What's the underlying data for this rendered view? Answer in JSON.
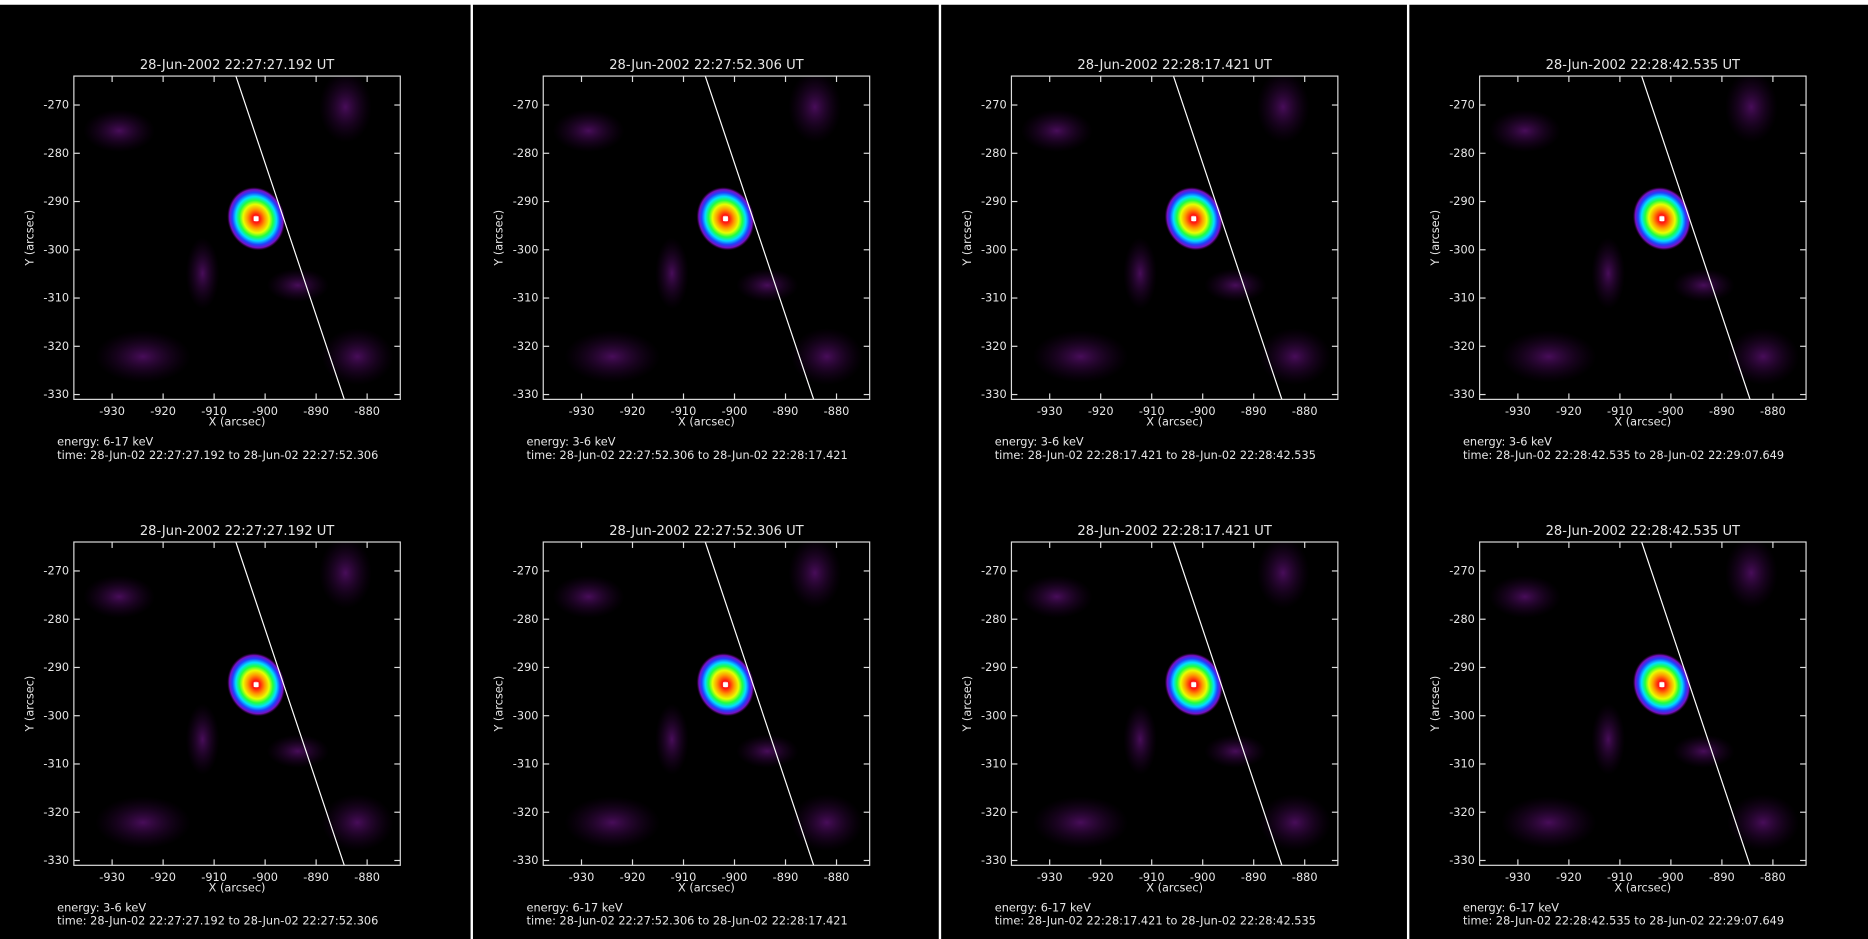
{
  "chart_data": [
    {
      "type": "image",
      "title": "28-Jun-2002 22:27:27.192 UT",
      "xlabel": "X (arcsec)",
      "ylabel": "Y (arcsec)",
      "xlim": [
        -937.5,
        -873.5
      ],
      "ylim": [
        -331,
        -264
      ],
      "xticks": [
        -930,
        -920,
        -910,
        -900,
        -890,
        -880
      ],
      "yticks": [
        -270,
        -280,
        -290,
        -300,
        -310,
        -320,
        -330
      ],
      "energy": "energy: 6-17 keV",
      "time": "time: 28-Jun-02 22:27:27.192 to 28-Jun-02 22:27:52.306"
    },
    {
      "type": "image",
      "title": "28-Jun-2002 22:27:52.306 UT",
      "xlabel": "X (arcsec)",
      "ylabel": "Y (arcsec)",
      "xlim": [
        -937.5,
        -873.5
      ],
      "ylim": [
        -331,
        -264
      ],
      "xticks": [
        -930,
        -920,
        -910,
        -900,
        -890,
        -880
      ],
      "yticks": [
        -270,
        -280,
        -290,
        -300,
        -310,
        -320,
        -330
      ],
      "energy": "energy: 3-6 keV",
      "time": "time: 28-Jun-02 22:27:52.306 to 28-Jun-02 22:28:17.421"
    },
    {
      "type": "image",
      "title": "28-Jun-2002 22:28:17.421 UT",
      "xlabel": "X (arcsec)",
      "ylabel": "Y (arcsec)",
      "xlim": [
        -937.5,
        -873.5
      ],
      "ylim": [
        -331,
        -264
      ],
      "xticks": [
        -930,
        -920,
        -910,
        -900,
        -890,
        -880
      ],
      "yticks": [
        -270,
        -280,
        -290,
        -300,
        -310,
        -320,
        -330
      ],
      "energy": "energy: 3-6 keV",
      "time": "time: 28-Jun-02 22:28:17.421 to 28-Jun-02 22:28:42.535"
    },
    {
      "type": "image",
      "title": "28-Jun-2002 22:28:42.535 UT",
      "xlabel": "X (arcsec)",
      "ylabel": "Y (arcsec)",
      "xlim": [
        -937.5,
        -873.5
      ],
      "ylim": [
        -331,
        -264
      ],
      "xticks": [
        -930,
        -920,
        -910,
        -900,
        -890,
        -880
      ],
      "yticks": [
        -270,
        -280,
        -290,
        -300,
        -310,
        -320,
        -330
      ],
      "energy": "energy: 3-6 keV",
      "time": "time: 28-Jun-02 22:28:42.535 to 28-Jun-02 22:29:07.649"
    },
    {
      "type": "image",
      "title": "28-Jun-2002 22:27:27.192 UT",
      "xlabel": "X (arcsec)",
      "ylabel": "Y (arcsec)",
      "xlim": [
        -937.5,
        -873.5
      ],
      "ylim": [
        -331,
        -264
      ],
      "xticks": [
        -930,
        -920,
        -910,
        -900,
        -890,
        -880
      ],
      "yticks": [
        -270,
        -280,
        -290,
        -300,
        -310,
        -320,
        -330
      ],
      "energy": "energy: 3-6 keV",
      "time": "time: 28-Jun-02 22:27:27.192 to 28-Jun-02 22:27:52.306"
    },
    {
      "type": "image",
      "title": "28-Jun-2002 22:27:52.306 UT",
      "xlabel": "X (arcsec)",
      "ylabel": "Y (arcsec)",
      "xlim": [
        -937.5,
        -873.5
      ],
      "ylim": [
        -331,
        -264
      ],
      "xticks": [
        -930,
        -920,
        -910,
        -900,
        -890,
        -880
      ],
      "yticks": [
        -270,
        -280,
        -290,
        -300,
        -310,
        -320,
        -330
      ],
      "energy": "energy: 6-17 keV",
      "time": "time: 28-Jun-02 22:27:52.306 to 28-Jun-02 22:28:17.421"
    },
    {
      "type": "image",
      "title": "28-Jun-2002 22:28:17.421 UT",
      "xlabel": "X (arcsec)",
      "ylabel": "Y (arcsec)",
      "xlim": [
        -937.5,
        -873.5
      ],
      "ylim": [
        -331,
        -264
      ],
      "xticks": [
        -930,
        -920,
        -910,
        -900,
        -890,
        -880
      ],
      "yticks": [
        -270,
        -280,
        -290,
        -300,
        -310,
        -320,
        -330
      ],
      "energy": "energy: 6-17 keV",
      "time": "time: 28-Jun-02 22:28:17.421 to 28-Jun-02 22:28:42.535"
    },
    {
      "type": "image",
      "title": "28-Jun-2002 22:28:42.535 UT",
      "xlabel": "X (arcsec)",
      "ylabel": "Y (arcsec)",
      "xlim": [
        -937.5,
        -873.5
      ],
      "ylim": [
        -331,
        -264
      ],
      "xticks": [
        -930,
        -920,
        -910,
        -900,
        -890,
        -880
      ],
      "yticks": [
        -270,
        -280,
        -290,
        -300,
        -310,
        -320,
        -330
      ],
      "energy": "energy: 6-17 keV",
      "time": "time: 28-Jun-02 22:28:42.535 to 28-Jun-02 22:29:07.649"
    }
  ]
}
